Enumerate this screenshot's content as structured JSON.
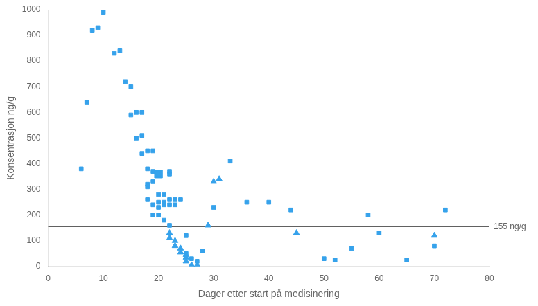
{
  "chart_data": {
    "type": "scatter",
    "xlabel": "Dager etter start på medisinering",
    "ylabel": "Konsentrasjon ng/g",
    "xlim": [
      0,
      80
    ],
    "ylim": [
      0,
      1000
    ],
    "xticks": [
      0,
      10,
      20,
      30,
      40,
      50,
      60,
      70,
      80
    ],
    "yticks": [
      0,
      100,
      200,
      300,
      400,
      500,
      600,
      700,
      800,
      900,
      1000
    ],
    "grid": false,
    "annotations": [
      {
        "text": "155 ng/g",
        "y": 155
      }
    ],
    "series": [
      {
        "marker": "square",
        "color": "#36a2eb",
        "x": [
          6,
          7,
          8,
          9,
          10,
          12,
          13,
          14,
          15,
          15,
          16,
          16,
          17,
          17,
          17,
          18,
          18,
          18,
          18,
          18,
          19,
          19,
          19,
          19,
          19,
          20,
          20,
          20,
          20,
          20,
          21,
          21,
          21,
          21,
          22,
          22,
          22,
          22,
          22,
          23,
          23,
          24,
          25,
          25,
          26,
          27,
          28,
          30,
          33,
          36,
          40,
          44,
          50,
          52,
          55,
          58,
          60,
          65,
          70,
          72
        ],
        "values": [
          380,
          640,
          920,
          930,
          990,
          830,
          840,
          720,
          700,
          590,
          600,
          500,
          440,
          510,
          600,
          450,
          380,
          320,
          310,
          260,
          450,
          370,
          330,
          240,
          200,
          360,
          280,
          250,
          230,
          200,
          280,
          250,
          240,
          180,
          360,
          370,
          260,
          240,
          160,
          260,
          240,
          260,
          120,
          50,
          30,
          20,
          60,
          230,
          410,
          250,
          250,
          220,
          30,
          25,
          70,
          200,
          130,
          25,
          80,
          220
        ]
      },
      {
        "marker": "square",
        "color": "#36a2eb",
        "x": [
          20
        ],
        "values": [
          360
        ]
      },
      {
        "marker": "triangle",
        "color": "#36a2eb",
        "x": [
          22,
          22,
          23,
          23,
          24,
          24,
          25,
          25,
          25,
          26,
          27,
          29,
          30,
          31,
          45,
          70
        ],
        "values": [
          130,
          110,
          100,
          80,
          70,
          55,
          45,
          35,
          20,
          5,
          5,
          160,
          330,
          340,
          130,
          120
        ]
      }
    ]
  }
}
